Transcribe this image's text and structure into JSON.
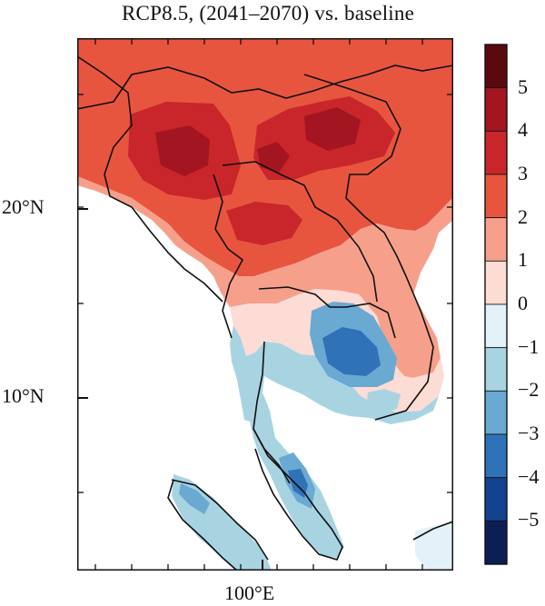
{
  "title": "RCP8.5, (2041–2070) vs. baseline",
  "axes": {
    "lat_labels": [
      "20°N",
      "10°N"
    ],
    "lon_labels": [
      "100°E"
    ]
  },
  "colorbar": {
    "tick_labels": [
      "5",
      "4",
      "3",
      "2",
      "1",
      "0",
      "−1",
      "−2",
      "−3",
      "−4",
      "−5"
    ],
    "levels_top_to_bottom": [
      "#5a0a0f",
      "#a31520",
      "#c8262b",
      "#e8553f",
      "#f6a08c",
      "#fcdcd4",
      "#e3f2f8",
      "#a8d4e2",
      "#6aa9d2",
      "#3072b8",
      "#13438e",
      "#0b1f55"
    ]
  },
  "map": {
    "region": "Mainland Southeast Asia",
    "lon_range": [
      95,
      110
    ],
    "lat_range": [
      1,
      29
    ],
    "colors": {
      "dark_red": "#a31520",
      "red": "#c8262b",
      "orange_red": "#e8553f",
      "salmon": "#f6a08c",
      "pale_pink": "#fcdcd4",
      "pale_blue": "#e3f2f8",
      "light_blue": "#a8d4e2",
      "blue": "#6aa9d2",
      "deep_blue": "#3072b8",
      "ocean": "#ffffff"
    }
  }
}
